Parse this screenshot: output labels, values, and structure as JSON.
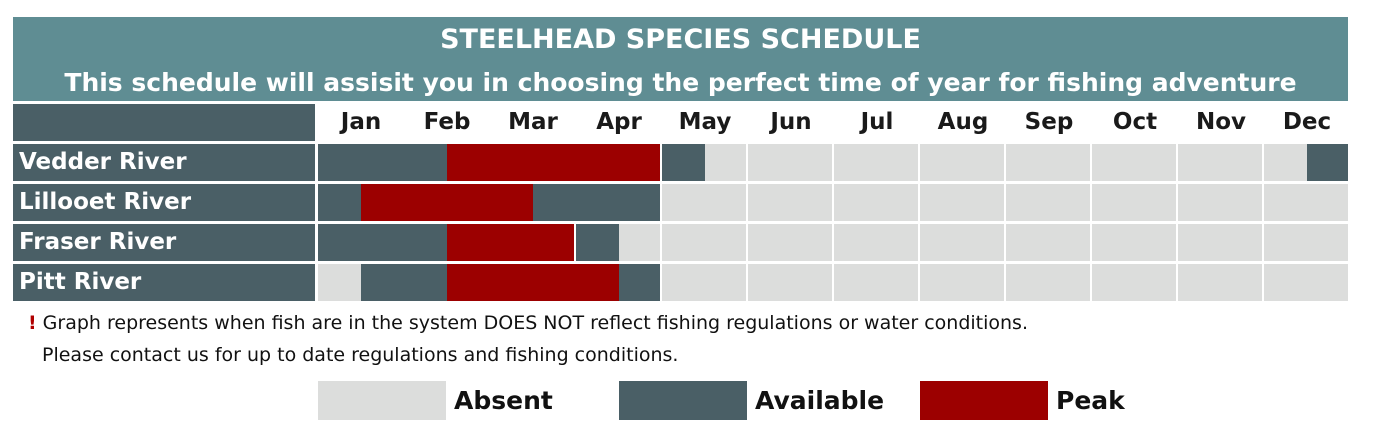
{
  "chart_data": {
    "type": "table",
    "title": "STEELHEAD SPECIES SCHEDULE",
    "subtitle": "This schedule will assisit you in choosing the perfect time of year for fishing adventure",
    "months": [
      "Jan",
      "Feb",
      "Mar",
      "Apr",
      "May",
      "Jun",
      "Jul",
      "Aug",
      "Sep",
      "Oct",
      "Nov",
      "Dec"
    ],
    "half_month_resolution": true,
    "status_colors": {
      "A": "#dcdddc",
      "V": "#4a5f66",
      "P": "#9c0000"
    },
    "status_names": {
      "A": "Absent",
      "V": "Available",
      "P": "Peak"
    },
    "rows": [
      {
        "name": "Vedder River",
        "halves": [
          "V",
          "V",
          "V",
          "P",
          "P",
          "P",
          "P",
          "P",
          "V",
          "A",
          "A",
          "A",
          "A",
          "A",
          "A",
          "A",
          "A",
          "A",
          "A",
          "A",
          "A",
          "A",
          "A",
          "V"
        ]
      },
      {
        "name": "Lillooet River",
        "halves": [
          "V",
          "P",
          "P",
          "P",
          "P",
          "V",
          "V",
          "V",
          "A",
          "A",
          "A",
          "A",
          "A",
          "A",
          "A",
          "A",
          "A",
          "A",
          "A",
          "A",
          "A",
          "A",
          "A",
          "A"
        ]
      },
      {
        "name": "Fraser River",
        "halves": [
          "V",
          "V",
          "V",
          "P",
          "P",
          "P",
          "V",
          "A",
          "A",
          "A",
          "A",
          "A",
          "A",
          "A",
          "A",
          "A",
          "A",
          "A",
          "A",
          "A",
          "A",
          "A",
          "A",
          "A"
        ]
      },
      {
        "name": "Pitt River",
        "halves": [
          "A",
          "V",
          "V",
          "P",
          "P",
          "P",
          "P",
          "V",
          "A",
          "A",
          "A",
          "A",
          "A",
          "A",
          "A",
          "A",
          "A",
          "A",
          "A",
          "A",
          "A",
          "A",
          "A",
          "A"
        ]
      }
    ]
  },
  "notes": {
    "bang": "!",
    "line1": "Graph represents when fish are in the system DOES NOT reflect fishing regulations or water conditions.",
    "line2": "Please contact us for up to date regulations and fishing conditions."
  },
  "legend": [
    {
      "key": "A",
      "label": "Absent",
      "color": "#dcdddc"
    },
    {
      "key": "V",
      "label": "Available",
      "color": "#4a5f66"
    },
    {
      "key": "P",
      "label": "Peak",
      "color": "#9c0000"
    }
  ]
}
